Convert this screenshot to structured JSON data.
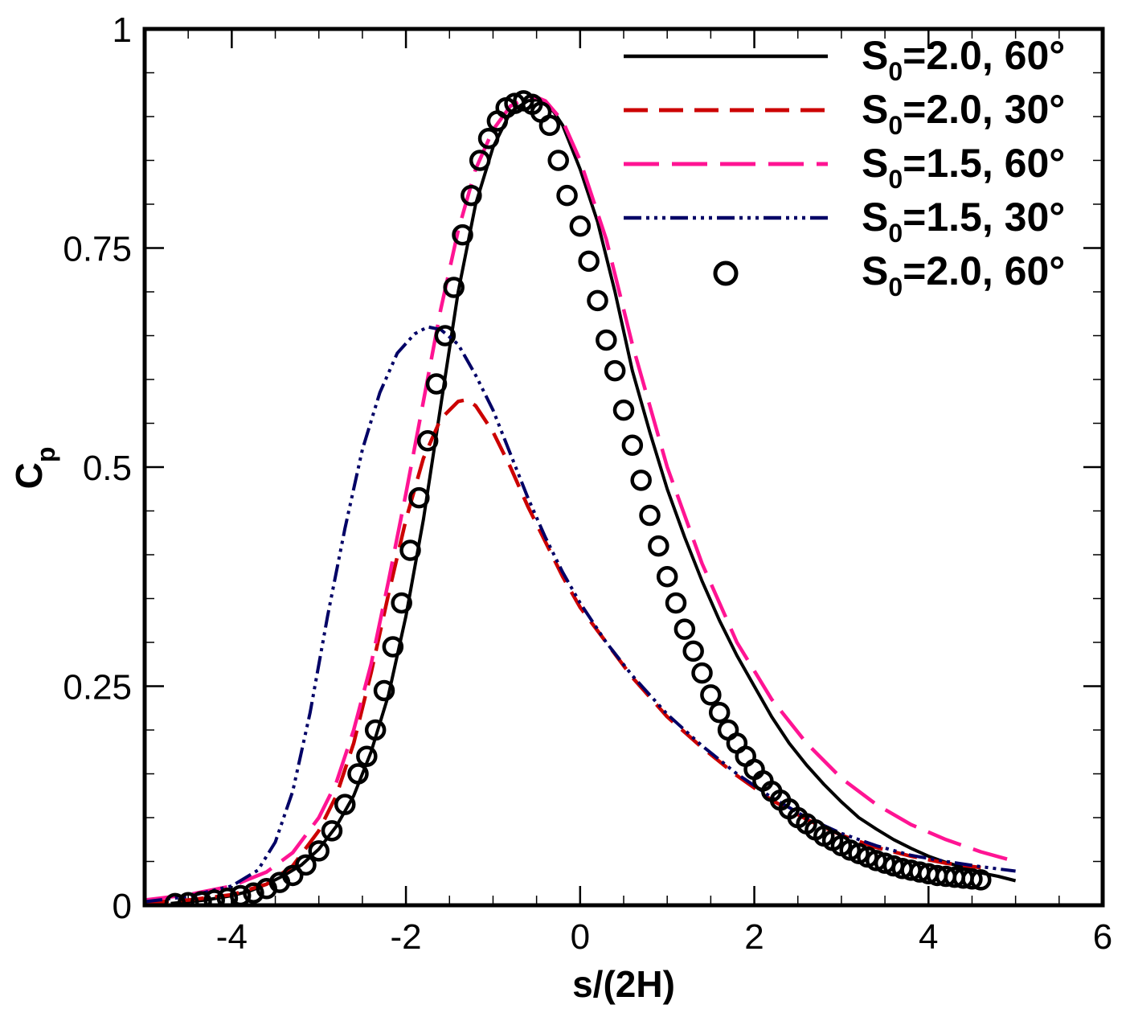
{
  "chart_data": {
    "type": "line",
    "title": "",
    "xlabel": "s/(2H)",
    "ylabel_main": "C",
    "ylabel_sub": "p",
    "xlim": [
      -5,
      6
    ],
    "ylim": [
      0,
      1
    ],
    "xticks": [
      -4,
      -2,
      0,
      2,
      4,
      6
    ],
    "xtick_labels": [
      "-4",
      "-2",
      "0",
      "2",
      "4",
      "6"
    ],
    "yticks": [
      0,
      0.25,
      0.5,
      0.75,
      1
    ],
    "ytick_labels": [
      "0",
      "0.25",
      "0.5",
      "0.75",
      "1"
    ],
    "grid": false,
    "legend_position": "top-right",
    "series": [
      {
        "name": "S0=2.0, 60°",
        "label_main": "S",
        "label_sub": "0",
        "label_rest": "=2.0, 60°",
        "style": "solid",
        "marker": "none",
        "color": "#000000",
        "x": [
          -4.7,
          -4.3,
          -4.0,
          -3.8,
          -3.6,
          -3.4,
          -3.2,
          -3.0,
          -2.8,
          -2.6,
          -2.4,
          -2.2,
          -2.0,
          -1.8,
          -1.6,
          -1.4,
          -1.2,
          -1.0,
          -0.8,
          -0.6,
          -0.5,
          -0.4,
          -0.3,
          -0.2,
          0.0,
          0.2,
          0.4,
          0.6,
          0.8,
          1.0,
          1.2,
          1.4,
          1.6,
          1.8,
          2.0,
          2.2,
          2.4,
          2.6,
          2.8,
          3.0,
          3.2,
          3.4,
          3.6,
          3.8,
          4.0,
          4.2,
          4.4,
          4.6,
          4.8,
          5.0
        ],
        "y": [
          0.002,
          0.006,
          0.011,
          0.016,
          0.024,
          0.034,
          0.046,
          0.064,
          0.09,
          0.125,
          0.175,
          0.24,
          0.33,
          0.44,
          0.57,
          0.7,
          0.8,
          0.865,
          0.905,
          0.918,
          0.919,
          0.915,
          0.905,
          0.89,
          0.84,
          0.78,
          0.7,
          0.61,
          0.54,
          0.475,
          0.42,
          0.37,
          0.325,
          0.285,
          0.25,
          0.215,
          0.185,
          0.16,
          0.138,
          0.118,
          0.1,
          0.087,
          0.075,
          0.065,
          0.056,
          0.049,
          0.043,
          0.037,
          0.033,
          0.028
        ]
      },
      {
        "name": "S0=2.0, 30°",
        "label_main": "S",
        "label_sub": "0",
        "label_rest": "=2.0, 30°",
        "style": "dashed",
        "marker": "none",
        "color": "#cc0000",
        "x": [
          -5.0,
          -4.5,
          -4.0,
          -3.6,
          -3.3,
          -3.0,
          -2.8,
          -2.6,
          -2.4,
          -2.2,
          -2.0,
          -1.8,
          -1.6,
          -1.4,
          -1.3,
          -1.2,
          -1.0,
          -0.8,
          -0.6,
          -0.4,
          -0.2,
          0.0,
          0.3,
          0.6,
          1.0,
          1.4,
          1.8,
          2.2,
          2.6,
          3.0,
          3.4,
          3.8,
          4.2,
          4.6
        ],
        "y": [
          0.003,
          0.006,
          0.012,
          0.024,
          0.045,
          0.085,
          0.125,
          0.185,
          0.265,
          0.355,
          0.44,
          0.51,
          0.555,
          0.575,
          0.577,
          0.57,
          0.54,
          0.5,
          0.455,
          0.415,
          0.375,
          0.34,
          0.3,
          0.26,
          0.215,
          0.18,
          0.148,
          0.12,
          0.098,
          0.08,
          0.066,
          0.056,
          0.048,
          0.043
        ]
      },
      {
        "name": "S0=1.5, 60°",
        "label_main": "S",
        "label_sub": "0",
        "label_rest": "=1.5, 60°",
        "style": "longdash",
        "marker": "none",
        "color": "#ff1493",
        "x": [
          -5.0,
          -4.5,
          -4.0,
          -3.6,
          -3.3,
          -3.0,
          -2.8,
          -2.6,
          -2.4,
          -2.2,
          -2.0,
          -1.8,
          -1.6,
          -1.4,
          -1.2,
          -1.0,
          -0.8,
          -0.6,
          -0.5,
          -0.4,
          -0.2,
          0.0,
          0.3,
          0.6,
          1.0,
          1.4,
          1.8,
          2.2,
          2.6,
          3.0,
          3.4,
          3.8,
          4.2,
          4.6,
          5.0
        ],
        "y": [
          0.006,
          0.012,
          0.022,
          0.038,
          0.06,
          0.1,
          0.14,
          0.2,
          0.275,
          0.37,
          0.47,
          0.575,
          0.68,
          0.77,
          0.84,
          0.885,
          0.912,
          0.922,
          0.922,
          0.918,
          0.895,
          0.85,
          0.76,
          0.64,
          0.5,
          0.39,
          0.3,
          0.235,
          0.185,
          0.145,
          0.115,
          0.092,
          0.075,
          0.061,
          0.05
        ]
      },
      {
        "name": "S0=1.5, 30°",
        "label_main": "S",
        "label_sub": "0",
        "label_rest": "=1.5, 30°",
        "style": "dashdotdot",
        "marker": "none",
        "color": "#000066",
        "x": [
          -5.0,
          -4.5,
          -4.0,
          -3.7,
          -3.5,
          -3.3,
          -3.1,
          -2.9,
          -2.7,
          -2.5,
          -2.3,
          -2.1,
          -1.9,
          -1.75,
          -1.6,
          -1.4,
          -1.2,
          -1.0,
          -0.8,
          -0.6,
          -0.4,
          -0.2,
          0.0,
          0.3,
          0.6,
          1.0,
          1.4,
          1.8,
          2.2,
          2.6,
          3.0,
          3.4,
          3.8,
          4.2,
          4.6,
          5.0
        ],
        "y": [
          0.004,
          0.01,
          0.022,
          0.04,
          0.072,
          0.13,
          0.22,
          0.33,
          0.43,
          0.52,
          0.585,
          0.63,
          0.652,
          0.66,
          0.657,
          0.64,
          0.605,
          0.565,
          0.515,
          0.465,
          0.42,
          0.38,
          0.345,
          0.3,
          0.262,
          0.218,
          0.182,
          0.15,
          0.123,
          0.1,
          0.082,
          0.068,
          0.057,
          0.05,
          0.044,
          0.039
        ]
      },
      {
        "name": "S0=2.0, 60°",
        "label_main": "S",
        "label_sub": "0",
        "label_rest": "=2.0, 60°",
        "style": "none",
        "marker": "circle",
        "color": "#000000",
        "x": [
          -4.65,
          -4.5,
          -4.35,
          -4.2,
          -4.05,
          -3.9,
          -3.75,
          -3.6,
          -3.45,
          -3.3,
          -3.15,
          -3.0,
          -2.85,
          -2.7,
          -2.55,
          -2.45,
          -2.35,
          -2.25,
          -2.15,
          -2.05,
          -1.95,
          -1.85,
          -1.75,
          -1.65,
          -1.55,
          -1.45,
          -1.35,
          -1.25,
          -1.15,
          -1.05,
          -0.95,
          -0.85,
          -0.75,
          -0.65,
          -0.55,
          -0.45,
          -0.35,
          -0.25,
          -0.15,
          0.0,
          0.1,
          0.2,
          0.3,
          0.4,
          0.5,
          0.6,
          0.7,
          0.8,
          0.9,
          1.0,
          1.1,
          1.2,
          1.3,
          1.4,
          1.5,
          1.6,
          1.7,
          1.8,
          1.9,
          2.0,
          2.1,
          2.2,
          2.3,
          2.4,
          2.5,
          2.6,
          2.7,
          2.8,
          2.9,
          3.0,
          3.1,
          3.2,
          3.3,
          3.4,
          3.5,
          3.6,
          3.7,
          3.8,
          3.9,
          4.0,
          4.1,
          4.2,
          4.3,
          4.4,
          4.5,
          4.6
        ],
        "y": [
          0.002,
          0.003,
          0.004,
          0.006,
          0.008,
          0.011,
          0.014,
          0.019,
          0.026,
          0.034,
          0.046,
          0.062,
          0.085,
          0.115,
          0.15,
          0.17,
          0.2,
          0.245,
          0.295,
          0.345,
          0.405,
          0.465,
          0.53,
          0.595,
          0.65,
          0.705,
          0.765,
          0.81,
          0.85,
          0.875,
          0.895,
          0.91,
          0.915,
          0.918,
          0.914,
          0.905,
          0.89,
          0.85,
          0.81,
          0.775,
          0.735,
          0.69,
          0.645,
          0.61,
          0.565,
          0.525,
          0.485,
          0.445,
          0.41,
          0.375,
          0.345,
          0.315,
          0.29,
          0.265,
          0.24,
          0.22,
          0.2,
          0.185,
          0.17,
          0.155,
          0.142,
          0.13,
          0.12,
          0.11,
          0.1,
          0.093,
          0.086,
          0.079,
          0.074,
          0.068,
          0.063,
          0.059,
          0.055,
          0.051,
          0.048,
          0.045,
          0.042,
          0.04,
          0.038,
          0.036,
          0.034,
          0.033,
          0.032,
          0.031,
          0.03,
          0.029
        ]
      }
    ]
  }
}
